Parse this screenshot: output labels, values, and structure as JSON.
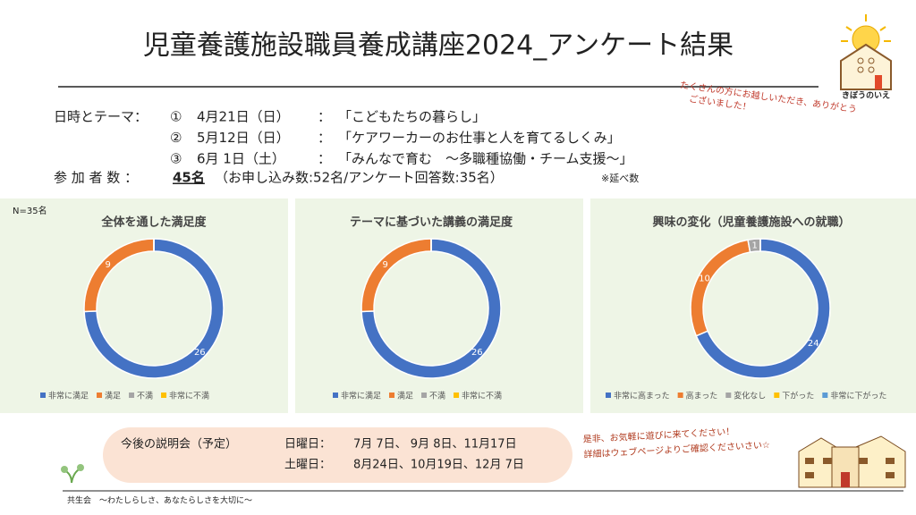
{
  "title": "児童養護施設職員養成講座2024_アンケート結果",
  "logo_text": "きぼうのいえ",
  "thanks_note": [
    "たくさんの方にお越しいただき、ありがとう",
    "ございました！"
  ],
  "schedule": {
    "label": "日時とテーマ：",
    "items": [
      {
        "number": "①",
        "date": "4月21日（日）",
        "sep": "：",
        "theme": "「こどもたちの暮らし」"
      },
      {
        "number": "②",
        "date": "5月12日（日）",
        "sep": "：",
        "theme": "「ケアワーカーのお仕事と人を育てるしくみ」"
      },
      {
        "number": "③",
        "date": "6月 1日（土）",
        "sep": "：",
        "theme": "「みんなで育む　～多職種協働・チーム支援～」"
      }
    ]
  },
  "participants": {
    "label": "参 加 者 数 ：",
    "count": "45名",
    "detail": "（お申し込み数:52名/アンケート回答数:35名）",
    "note": "※延べ数"
  },
  "sample_note": "N=35名",
  "chart_data": [
    {
      "type": "pie",
      "donut": true,
      "title": "全体を通した満足度",
      "categories": [
        "非常に満足",
        "満足",
        "不満",
        "非常に不満"
      ],
      "values": [
        26,
        9,
        0,
        0
      ],
      "colors": [
        "#4472c4",
        "#ed7d31",
        "#a5a5a5",
        "#ffc000"
      ]
    },
    {
      "type": "pie",
      "donut": true,
      "title": "テーマに基づいた講義の満足度",
      "categories": [
        "非常に満足",
        "満足",
        "不満",
        "非常に不満"
      ],
      "values": [
        26,
        9,
        0,
        0
      ],
      "colors": [
        "#4472c4",
        "#ed7d31",
        "#a5a5a5",
        "#ffc000"
      ]
    },
    {
      "type": "pie",
      "donut": true,
      "title": "興味の変化（児童養護施設への就職）",
      "categories": [
        "非常に高まった",
        "高まった",
        "変化なし",
        "下がった",
        "非常に下がった"
      ],
      "values": [
        24,
        10,
        1,
        0,
        0
      ],
      "colors": [
        "#4472c4",
        "#ed7d31",
        "#a5a5a5",
        "#ffc000",
        "#5b9bd5"
      ]
    }
  ],
  "upcoming": {
    "label": "今後の説明会（予定）",
    "rows": [
      {
        "day": "日曜日：",
        "dates": "7月 7日、 9月 8日、11月17日"
      },
      {
        "day": "土曜日：",
        "dates": "8月24日、10月19日、12月 7日"
      }
    ]
  },
  "invite": [
    "是非、お気軽に遊びに来てください！",
    "詳細はウェブページよりご確認くださいさい☆"
  ],
  "footer": "共生会　～わたしらしさ、あなたらしさを大切に～"
}
